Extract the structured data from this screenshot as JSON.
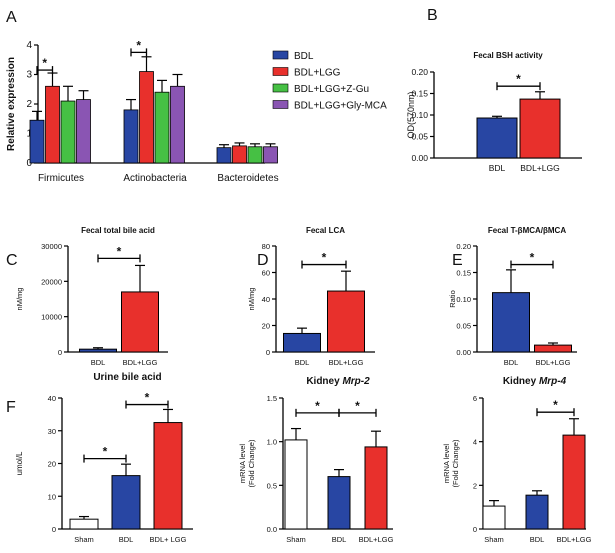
{
  "colors": {
    "BDL": "#2846a3",
    "BDL+LGG": "#e8302c",
    "BDL+LGG+Z-Gu": "#46c044",
    "BDL+LGG+Gly-MCA": "#8a55b3",
    "Sham": "#ffffff"
  },
  "chart_data": [
    {
      "id": "A",
      "panel_label": "A",
      "type": "bar",
      "title": "",
      "xlabel": "",
      "ylabel": "Relative expression",
      "ylim": [
        0,
        4
      ],
      "yticks": [
        "0",
        "1",
        "2",
        "3",
        "4"
      ],
      "categories": [
        "Firmicutes",
        "Actinobacteria",
        "Bacteroidetes"
      ],
      "legend_position": "right",
      "series": [
        {
          "name": "BDL",
          "color": "#2846a3",
          "values": [
            1.45,
            1.8,
            0.52
          ],
          "errors": [
            0.3,
            0.35,
            0.1
          ]
        },
        {
          "name": "BDL+LGG",
          "color": "#e8302c",
          "values": [
            2.6,
            3.1,
            0.58
          ],
          "errors": [
            0.45,
            0.5,
            0.1
          ]
        },
        {
          "name": "BDL+LGG+Z-Gu",
          "color": "#46c044",
          "values": [
            2.1,
            2.4,
            0.55
          ],
          "errors": [
            0.5,
            0.4,
            0.1
          ]
        },
        {
          "name": "BDL+LGG+Gly-MCA",
          "color": "#8a55b3",
          "values": [
            2.15,
            2.6,
            0.55
          ],
          "errors": [
            0.3,
            0.4,
            0.1
          ]
        }
      ],
      "significance": [
        {
          "label": "*",
          "category": 0,
          "from": 0,
          "to": 1,
          "y": 3.15
        },
        {
          "label": "*",
          "category": 1,
          "from": 0,
          "to": 1,
          "y": 3.75
        }
      ]
    },
    {
      "id": "B",
      "panel_label": "B",
      "type": "bar",
      "title": "Fecal BSH activity",
      "xlabel": "",
      "ylabel": "OD(570nm)",
      "ylim": [
        0,
        0.2
      ],
      "yticks": [
        "0.00",
        "0.05",
        "0.10",
        "0.15",
        "0.20"
      ],
      "categories": [
        "BDL",
        "BDL+LGG"
      ],
      "values": [
        0.093,
        0.137
      ],
      "errors": [
        0.004,
        0.017
      ],
      "colors": [
        "#2846a3",
        "#e8302c"
      ],
      "significance": [
        {
          "label": "*",
          "from": 0,
          "to": 1,
          "y": 0.167
        }
      ]
    },
    {
      "id": "C",
      "panel_label": "C",
      "type": "bar",
      "title": "Fecal total bile acid",
      "xlabel": "",
      "ylabel": "nM/mg",
      "ylim": [
        0,
        30000
      ],
      "yticks": [
        "0",
        "10000",
        "20000",
        "30000"
      ],
      "categories": [
        "BDL",
        "BDL+LGG"
      ],
      "values": [
        800,
        17000
      ],
      "errors": [
        400,
        7500
      ],
      "colors": [
        "#2846a3",
        "#e8302c"
      ],
      "significance": [
        {
          "label": "*",
          "from": 0,
          "to": 1,
          "y": 26500
        }
      ]
    },
    {
      "id": "D",
      "panel_label": "D",
      "type": "bar",
      "title": "Fecal LCA",
      "xlabel": "",
      "ylabel": "nM/mg",
      "ylim": [
        0,
        80
      ],
      "yticks": [
        "0",
        "20",
        "40",
        "60",
        "80"
      ],
      "categories": [
        "BDL",
        "BDL+LGG"
      ],
      "values": [
        14,
        46
      ],
      "errors": [
        4,
        15
      ],
      "colors": [
        "#2846a3",
        "#e8302c"
      ],
      "significance": [
        {
          "label": "*",
          "from": 0,
          "to": 1,
          "y": 66
        }
      ]
    },
    {
      "id": "E",
      "panel_label": "E",
      "type": "bar",
      "title": "Fecal T-βMCA/βMCA",
      "xlabel": "",
      "ylabel": "Ratio",
      "ylim": [
        0,
        0.2
      ],
      "yticks": [
        "0.00",
        "0.05",
        "0.10",
        "0.15",
        "0.20"
      ],
      "categories": [
        "BDL",
        "BDL+LGG"
      ],
      "values": [
        0.112,
        0.013
      ],
      "errors": [
        0.043,
        0.004
      ],
      "colors": [
        "#2846a3",
        "#e8302c"
      ],
      "significance": [
        {
          "label": "*",
          "from": 0,
          "to": 1,
          "y": 0.165
        }
      ]
    },
    {
      "id": "F1",
      "panel_label": "F",
      "type": "bar",
      "title": "Urine bile acid",
      "xlabel": "",
      "ylabel": "umol/L",
      "ylim": [
        0,
        40
      ],
      "yticks": [
        "0",
        "10",
        "20",
        "30",
        "40"
      ],
      "categories": [
        "Sham",
        "BDL",
        "BDL+ LGG"
      ],
      "values": [
        3,
        16.3,
        32.5
      ],
      "errors": [
        0.8,
        3.5,
        4
      ],
      "colors": [
        "#ffffff",
        "#2846a3",
        "#e8302c"
      ],
      "significance": [
        {
          "label": "*",
          "from": 0,
          "to": 1,
          "y": 21.5
        },
        {
          "label": "*",
          "from": 1,
          "to": 2,
          "y": 38
        }
      ]
    },
    {
      "id": "F2",
      "panel_label": "",
      "type": "bar",
      "title": "Kidney Mrp-2",
      "title_plain": "Kidney ",
      "title_italic": "Mrp-2",
      "xlabel": "",
      "ylabel": "mRNA level (Fold Change)",
      "ylabel_lines": [
        "mRNA level",
        "(Fold Change)"
      ],
      "ylim": [
        0,
        1.5
      ],
      "yticks": [
        "0.0",
        "0.5",
        "1.0",
        "1.5"
      ],
      "categories": [
        "Sham",
        "BDL",
        "BDL+LGG"
      ],
      "values": [
        1.02,
        0.6,
        0.94
      ],
      "errors": [
        0.13,
        0.08,
        0.18
      ],
      "colors": [
        "#ffffff",
        "#2846a3",
        "#e8302c"
      ],
      "significance": [
        {
          "label": "*",
          "from": 0,
          "to": 1,
          "y": 1.33
        },
        {
          "label": "*",
          "from": 1,
          "to": 2,
          "y": 1.33
        }
      ]
    },
    {
      "id": "F3",
      "panel_label": "",
      "type": "bar",
      "title": "Kidney Mrp-4",
      "title_plain": "Kidney ",
      "title_italic": "Mrp-4",
      "xlabel": "",
      "ylabel": "mRNA level (Fold Change)",
      "ylabel_lines": [
        "mRNA level",
        "(Fold Change)"
      ],
      "ylim": [
        0,
        6
      ],
      "yticks": [
        "0",
        "2",
        "4",
        "6"
      ],
      "categories": [
        "Sham",
        "BDL",
        "BDL+LGG"
      ],
      "values": [
        1.05,
        1.55,
        4.3
      ],
      "errors": [
        0.25,
        0.2,
        0.75
      ],
      "colors": [
        "#ffffff",
        "#2846a3",
        "#e8302c"
      ],
      "significance": [
        {
          "label": "*",
          "from": 1,
          "to": 2,
          "y": 5.35
        }
      ]
    }
  ]
}
